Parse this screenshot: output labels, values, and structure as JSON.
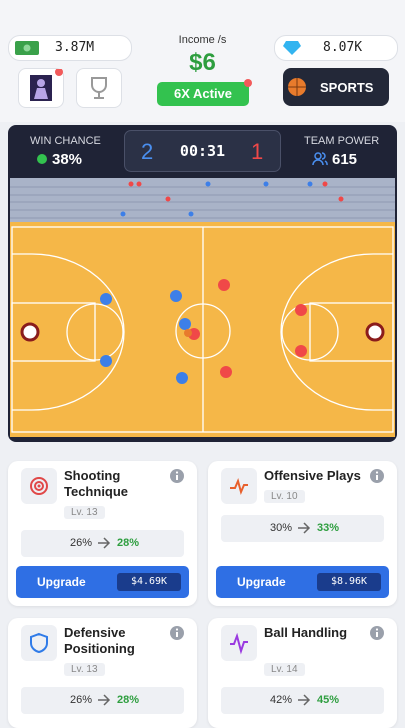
{
  "header": {
    "cash": "3.87M",
    "income_label": "Income /s",
    "income": "$6",
    "boost": "6X Active",
    "gems": "8.07K",
    "sports_button": "SPORTS"
  },
  "match": {
    "win_chance_label": "WIN CHANCE",
    "win_chance": "38%",
    "score_home": "2",
    "clock": "00:31",
    "score_away": "1",
    "team_power_label": "TEAM POWER",
    "team_power": "615"
  },
  "upgrades": [
    {
      "title": "Shooting Technique",
      "level": "Lv. 13",
      "current": "26%",
      "next": "28%",
      "button": "Upgrade",
      "cost": "$4.69K"
    },
    {
      "title": "Offensive Plays",
      "level": "Lv. 10",
      "current": "30%",
      "next": "33%",
      "button": "Upgrade",
      "cost": "$8.96K"
    },
    {
      "title": "Defensive Positioning",
      "level": "Lv. 13",
      "current": "26%",
      "next": "28%"
    },
    {
      "title": "Ball Handling",
      "level": "Lv. 14",
      "current": "42%",
      "next": "45%"
    }
  ]
}
